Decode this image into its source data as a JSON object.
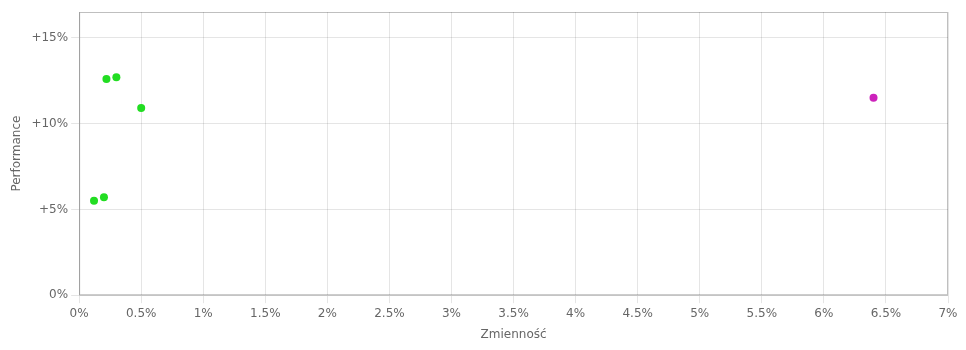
{
  "chart_data": {
    "type": "scatter",
    "xlabel": "Zmienność",
    "ylabel": "Performance",
    "series": [
      {
        "color": "#22dd22",
        "x": [
          0.0022,
          0.003,
          0.005,
          0.0012,
          0.002
        ],
        "values": [
          0.126,
          0.127,
          0.109,
          0.055,
          0.057
        ]
      },
      {
        "color": "#cc22bb",
        "x": [
          0.064
        ],
        "values": [
          0.115
        ]
      }
    ],
    "xlim": [
      0,
      0.07
    ],
    "ylim": [
      0,
      0.165
    ],
    "xticks": [
      {
        "value": 0.0,
        "label": "0%"
      },
      {
        "value": 0.005,
        "label": "0.5%"
      },
      {
        "value": 0.01,
        "label": "1%"
      },
      {
        "value": 0.015,
        "label": "1.5%"
      },
      {
        "value": 0.02,
        "label": "2%"
      },
      {
        "value": 0.025,
        "label": "2.5%"
      },
      {
        "value": 0.03,
        "label": "3%"
      },
      {
        "value": 0.035,
        "label": "3.5%"
      },
      {
        "value": 0.04,
        "label": "4%"
      },
      {
        "value": 0.045,
        "label": "4.5%"
      },
      {
        "value": 0.05,
        "label": "5%"
      },
      {
        "value": 0.055,
        "label": "5.5%"
      },
      {
        "value": 0.06,
        "label": "6%"
      },
      {
        "value": 0.065,
        "label": "6.5%"
      },
      {
        "value": 0.07,
        "label": "7%"
      }
    ],
    "yticks": [
      {
        "value": 0.0,
        "label": "0%"
      },
      {
        "value": 0.05,
        "label": "+5%"
      },
      {
        "value": 0.1,
        "label": "+10%"
      },
      {
        "value": 0.15,
        "label": "+15%"
      }
    ],
    "grid": true
  }
}
